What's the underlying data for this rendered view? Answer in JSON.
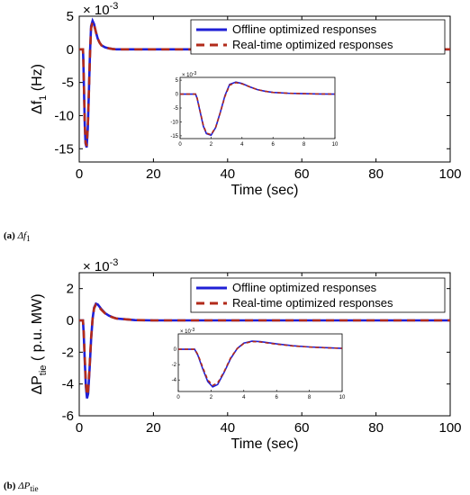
{
  "colors": {
    "offline": "#1f1fd6",
    "realtime": "#b22a1a",
    "axis": "#000000"
  },
  "legend": {
    "offline_label": "Offline optimized responses",
    "realtime_label": "Real-time optimized responses"
  },
  "captions": {
    "a": {
      "letter": "(a)",
      "symbol": "Δf",
      "sub": "1"
    },
    "b": {
      "letter": "(b)",
      "symbol": "ΔP",
      "sub": "tie"
    }
  },
  "chart_data": [
    {
      "id": "a",
      "type": "line",
      "xlabel": "Time (sec)",
      "ylabel_main": "Δf",
      "ylabel_sub": "1",
      "ylabel_unit": "(Hz)",
      "exponent_label": "× 10",
      "exponent_power": "-3",
      "xlim": [
        0,
        100
      ],
      "ylim": [
        -17,
        5
      ],
      "xticks": [
        0,
        20,
        40,
        60,
        80,
        100
      ],
      "yticks": [
        -15,
        -10,
        -5,
        0,
        5
      ],
      "legend_position": "top-right",
      "series": [
        {
          "name": "Offline optimized responses",
          "x": [
            0,
            1,
            1.1,
            1.3,
            1.5,
            1.7,
            2.0,
            2.3,
            2.6,
            2.9,
            3.2,
            3.6,
            4.0,
            4.5,
            5,
            5.5,
            6,
            7,
            8,
            9,
            10,
            15,
            20,
            100
          ],
          "y": [
            0,
            0,
            -1.5,
            -6.5,
            -11.5,
            -14.2,
            -14.8,
            -12,
            -6.5,
            -0.5,
            3.5,
            4.3,
            3.8,
            2.6,
            1.6,
            1.0,
            0.6,
            0.3,
            0.15,
            0.05,
            0.0,
            0,
            0,
            0
          ]
        },
        {
          "name": "Real-time optimized responses",
          "x": [
            0,
            1,
            1.1,
            1.3,
            1.5,
            1.7,
            2.0,
            2.3,
            2.6,
            2.9,
            3.2,
            3.6,
            4.0,
            4.5,
            5,
            5.5,
            6,
            7,
            8,
            9,
            10,
            15,
            20,
            100
          ],
          "y": [
            0,
            0,
            -1.4,
            -6.3,
            -11.2,
            -14.0,
            -14.6,
            -11.9,
            -6.6,
            -0.8,
            3.2,
            4.1,
            3.7,
            2.6,
            1.6,
            1.0,
            0.6,
            0.3,
            0.15,
            0.05,
            0.0,
            0,
            0,
            0
          ]
        }
      ],
      "inset": {
        "exponent_label": "× 10",
        "exponent_power": "-3",
        "xlim": [
          0,
          10
        ],
        "ylim": [
          -16,
          6
        ],
        "xticks": [
          0,
          2,
          4,
          6,
          8,
          10
        ],
        "yticks": [
          -15,
          -10,
          -5,
          0,
          5
        ]
      }
    },
    {
      "id": "b",
      "type": "line",
      "xlabel": "Time (sec)",
      "ylabel_main": "ΔP",
      "ylabel_sub": "tie",
      "ylabel_unit": "( p.u. MW)",
      "exponent_label": "× 10",
      "exponent_power": "-3",
      "xlim": [
        0,
        100
      ],
      "ylim": [
        -6,
        3
      ],
      "xticks": [
        0,
        20,
        40,
        60,
        80,
        100
      ],
      "yticks": [
        -6,
        -4,
        -2,
        0,
        2
      ],
      "legend_position": "top-right",
      "series": [
        {
          "name": "Offline optimized responses",
          "x": [
            0,
            1,
            1.2,
            1.5,
            1.8,
            2.1,
            2.4,
            2.8,
            3.2,
            3.6,
            4.0,
            4.5,
            5.0,
            5.5,
            6,
            7,
            8,
            9,
            10,
            15,
            20,
            100
          ],
          "y": [
            0,
            0,
            -0.8,
            -2.6,
            -4.2,
            -4.9,
            -4.6,
            -3.0,
            -1.2,
            0.1,
            0.8,
            1.05,
            1.0,
            0.85,
            0.7,
            0.45,
            0.3,
            0.2,
            0.12,
            0.02,
            0,
            0
          ]
        },
        {
          "name": "Real-time optimized responses",
          "x": [
            0,
            1,
            1.2,
            1.5,
            1.8,
            2.1,
            2.4,
            2.8,
            3.2,
            3.6,
            4.0,
            4.5,
            5.0,
            5.5,
            6,
            7,
            8,
            9,
            10,
            15,
            20,
            100
          ],
          "y": [
            0,
            0,
            -0.7,
            -2.4,
            -4.0,
            -4.7,
            -4.4,
            -2.9,
            -1.1,
            0.1,
            0.75,
            1.0,
            0.95,
            0.8,
            0.66,
            0.43,
            0.29,
            0.19,
            0.12,
            0.02,
            0,
            0
          ]
        }
      ],
      "inset": {
        "exponent_label": "× 10",
        "exponent_power": "-3",
        "xlim": [
          0,
          10
        ],
        "ylim": [
          -5.5,
          2
        ],
        "xticks": [
          0,
          2,
          4,
          6,
          8,
          10
        ],
        "yticks": [
          -4,
          -2,
          0
        ]
      }
    }
  ]
}
